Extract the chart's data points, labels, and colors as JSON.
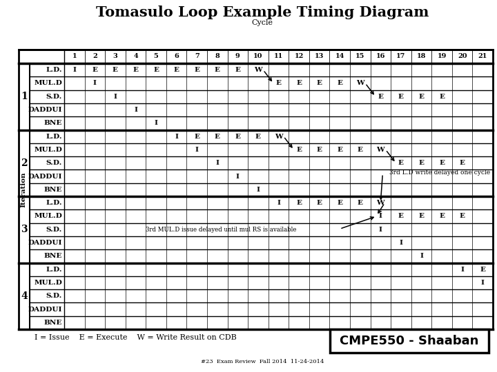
{
  "title": "Tomasulo Loop Example Timing Diagram",
  "subtitle": "Cycle",
  "ylabel": "Iteration",
  "n_cycles": 21,
  "instructions": [
    "L.D.",
    "MUL.D",
    "S.D.",
    "DADDUI",
    "BNE"
  ],
  "legend": "I = Issue    E = Execute    W = Write Result on CDB",
  "watermark": "CMPE550 - Shaaban",
  "footnote": "#23  Exam Review  Fall 2014  11-24-2014",
  "cells": {
    "1": {
      "L.D.": [
        [
          "I",
          1
        ],
        [
          "E",
          2
        ],
        [
          "E",
          3
        ],
        [
          "E",
          4
        ],
        [
          "E",
          5
        ],
        [
          "E",
          6
        ],
        [
          "E",
          7
        ],
        [
          "E",
          8
        ],
        [
          "E",
          9
        ],
        [
          "W",
          10
        ]
      ],
      "MUL.D": [
        [
          "I",
          2
        ],
        [
          "E",
          11
        ],
        [
          "E",
          12
        ],
        [
          "E",
          13
        ],
        [
          "E",
          14
        ],
        [
          "W",
          15
        ]
      ],
      "S.D.": [
        [
          "I",
          3
        ],
        [
          "E",
          16
        ],
        [
          "E",
          17
        ],
        [
          "E",
          18
        ],
        [
          "E",
          19
        ]
      ],
      "DADDUI": [
        [
          "I",
          4
        ]
      ],
      "BNE": [
        [
          "I",
          5
        ]
      ]
    },
    "2": {
      "L.D.": [
        [
          "I",
          6
        ],
        [
          "E",
          7
        ],
        [
          "E",
          8
        ],
        [
          "E",
          9
        ],
        [
          "E",
          10
        ],
        [
          "W",
          11
        ]
      ],
      "MUL.D": [
        [
          "I",
          7
        ],
        [
          "E",
          12
        ],
        [
          "E",
          13
        ],
        [
          "E",
          14
        ],
        [
          "E",
          15
        ],
        [
          "W",
          16
        ]
      ],
      "S.D.": [
        [
          "I",
          8
        ],
        [
          "E",
          17
        ],
        [
          "E",
          18
        ],
        [
          "E",
          19
        ],
        [
          "E",
          20
        ]
      ],
      "DADDUI": [
        [
          "I",
          9
        ]
      ],
      "BNE": [
        [
          "I",
          10
        ]
      ]
    },
    "3": {
      "L.D.": [
        [
          "I",
          11
        ],
        [
          "E",
          12
        ],
        [
          "E",
          13
        ],
        [
          "E",
          14
        ],
        [
          "E",
          15
        ],
        [
          "W",
          16
        ]
      ],
      "MUL.D": [
        [
          "I",
          16
        ],
        [
          "E",
          17
        ],
        [
          "E",
          18
        ],
        [
          "E",
          19
        ],
        [
          "E",
          20
        ]
      ],
      "S.D.": [
        [
          "I",
          16
        ]
      ],
      "DADDUI": [
        [
          "I",
          17
        ]
      ],
      "BNE": [
        [
          "I",
          18
        ]
      ]
    },
    "4": {
      "L.D.": [
        [
          "I",
          20
        ],
        [
          "E",
          21
        ]
      ],
      "MUL.D": [
        [
          "I",
          21
        ]
      ],
      "S.D.": [],
      "DADDUI": [],
      "BNE": []
    }
  },
  "annotation1": "3rd L.D write delayed one cycle",
  "annotation2": "3rd MUL.D issue delayed until mul RS is available"
}
